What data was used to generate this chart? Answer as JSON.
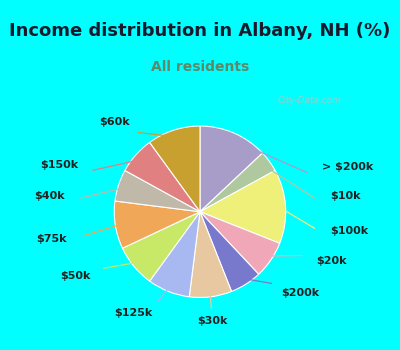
{
  "title": "Income distribution in Albany, NH (%)",
  "subtitle": "All residents",
  "title_color": "#1a1a2e",
  "subtitle_color": "#5a8a6a",
  "background_outer": "#00ffff",
  "watermark": "City-Data.com",
  "labels": [
    "> $200k",
    "$10k",
    "$100k",
    "$20k",
    "$200k",
    "$30k",
    "$125k",
    "$50k",
    "$75k",
    "$40k",
    "$150k",
    "$60k"
  ],
  "values": [
    13,
    4,
    14,
    7,
    6,
    8,
    8,
    8,
    9,
    6,
    7,
    10
  ],
  "colors": [
    "#a89cc8",
    "#b0c8a0",
    "#eef07a",
    "#f0a8b8",
    "#7878cc",
    "#e8c8a0",
    "#a8b8f0",
    "#c8e868",
    "#f0a858",
    "#c0b8a8",
    "#e08080",
    "#c8a030"
  ],
  "label_fontsize": 8,
  "title_fontsize": 13,
  "subtitle_fontsize": 10,
  "inner_bg_left": "#e8f8f0",
  "inner_bg_right": "#d0eee8"
}
